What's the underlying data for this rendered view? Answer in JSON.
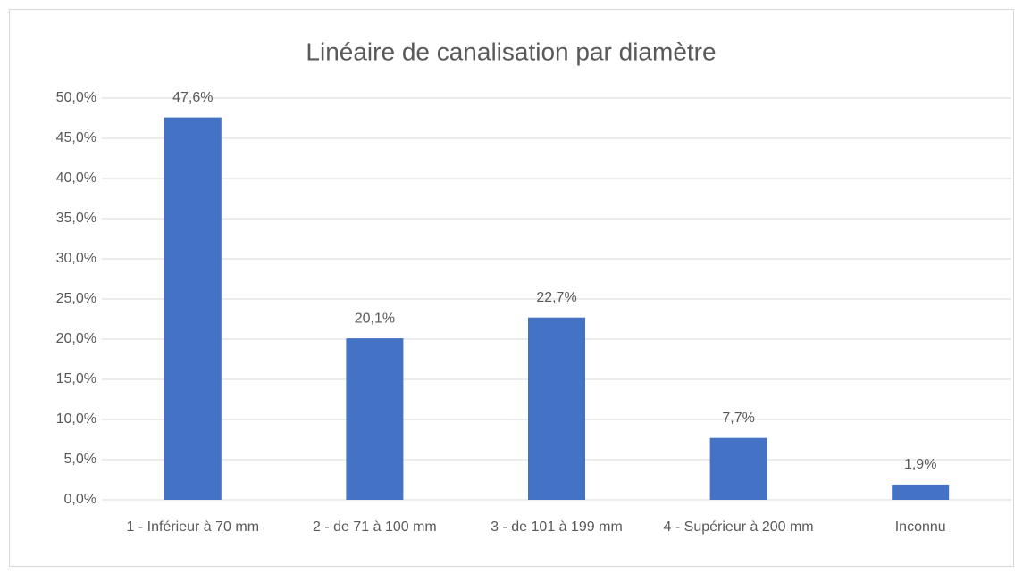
{
  "chart_data": {
    "type": "bar",
    "title": "Linéaire de canalisation par diamètre",
    "categories": [
      "1 - Inférieur à 70 mm",
      "2 - de 71 à 100 mm",
      "3 - de 101 à 199 mm",
      "4 - Supérieur à 200 mm",
      "Inconnu"
    ],
    "values": [
      47.6,
      20.1,
      22.7,
      7.7,
      1.9
    ],
    "value_labels": [
      "47,6%",
      "20,1%",
      "22,7%",
      "7,7%",
      "1,9%"
    ],
    "color": "#4472c4",
    "ylim": [
      0,
      50
    ],
    "yticks": [
      {
        "value": 0,
        "label": "0,0%"
      },
      {
        "value": 5,
        "label": "5,0%"
      },
      {
        "value": 10,
        "label": "10,0%"
      },
      {
        "value": 15,
        "label": "15,0%"
      },
      {
        "value": 20,
        "label": "20,0%"
      },
      {
        "value": 25,
        "label": "25,0%"
      },
      {
        "value": 30,
        "label": "30,0%"
      },
      {
        "value": 35,
        "label": "35,0%"
      },
      {
        "value": 40,
        "label": "40,0%"
      },
      {
        "value": 45,
        "label": "45,0%"
      },
      {
        "value": 50,
        "label": "50,0%"
      }
    ],
    "grid": true
  }
}
